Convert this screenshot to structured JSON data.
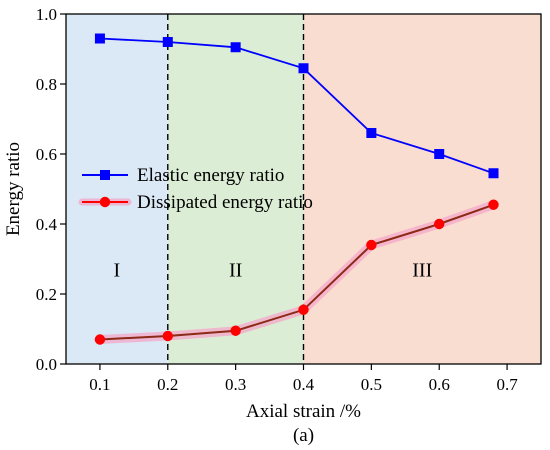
{
  "chart_data": {
    "type": "line",
    "xlabel": "Axial strain /%",
    "ylabel": "Energy ratio",
    "caption": "(a)",
    "xlim": [
      0.05,
      0.75
    ],
    "ylim": [
      0.0,
      1.0
    ],
    "xticks": [
      0.1,
      0.2,
      0.3,
      0.4,
      0.5,
      0.6,
      0.7
    ],
    "yticks": [
      0.0,
      0.2,
      0.4,
      0.6,
      0.8,
      1.0
    ],
    "xtick_labels": [
      "0.1",
      "0.2",
      "0.3",
      "0.4",
      "0.5",
      "0.6",
      "0.7"
    ],
    "ytick_labels": [
      "0.0",
      "0.2",
      "0.4",
      "0.6",
      "0.8",
      "1.0"
    ],
    "legend_position": "center-left",
    "regions": [
      {
        "label": "I",
        "x_range": [
          0.05,
          0.2
        ],
        "color": "#dbe8f6"
      },
      {
        "label": "II",
        "x_range": [
          0.2,
          0.4
        ],
        "color": "#dcedd6"
      },
      {
        "label": "III",
        "x_range": [
          0.4,
          0.75
        ],
        "color": "#f9ddd1"
      }
    ],
    "region_label_y": 0.27,
    "dividers": [
      0.2,
      0.4
    ],
    "series": [
      {
        "name": "Elastic energy ratio",
        "color": "#0000ff",
        "marker": "square",
        "x": [
          0.1,
          0.2,
          0.3,
          0.4,
          0.5,
          0.6,
          0.68
        ],
        "y": [
          0.93,
          0.92,
          0.905,
          0.845,
          0.66,
          0.6,
          0.545
        ]
      },
      {
        "name": "Dissipated energy ratio",
        "color": "#ff0000",
        "marker": "circle",
        "x": [
          0.1,
          0.2,
          0.3,
          0.4,
          0.5,
          0.6,
          0.68
        ],
        "y": [
          0.07,
          0.08,
          0.095,
          0.155,
          0.34,
          0.4,
          0.455
        ]
      }
    ]
  }
}
